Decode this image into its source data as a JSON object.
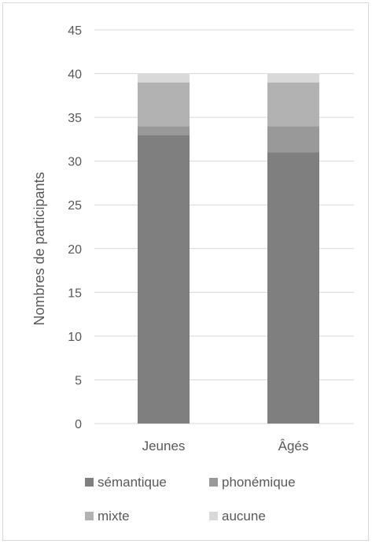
{
  "chart_data": {
    "type": "bar",
    "stacked": true,
    "title": "",
    "xlabel": "",
    "ylabel": "Nombres de participants",
    "ylim": [
      0,
      45
    ],
    "yticks": [
      "0",
      "5",
      "10",
      "15",
      "20",
      "25",
      "30",
      "35",
      "40",
      "45"
    ],
    "categories": [
      "Jeunes",
      "Âgés"
    ],
    "series": [
      {
        "name": "sémantique",
        "values": [
          33,
          31
        ],
        "color": "#7f7f7f"
      },
      {
        "name": "phonémique",
        "values": [
          1,
          3
        ],
        "color": "#999999"
      },
      {
        "name": "mixte",
        "values": [
          5,
          5
        ],
        "color": "#b2b2b2"
      },
      {
        "name": "aucune",
        "values": [
          1,
          1
        ],
        "color": "#d9d9d9"
      }
    ],
    "grid": true,
    "legend_position": "bottom"
  }
}
